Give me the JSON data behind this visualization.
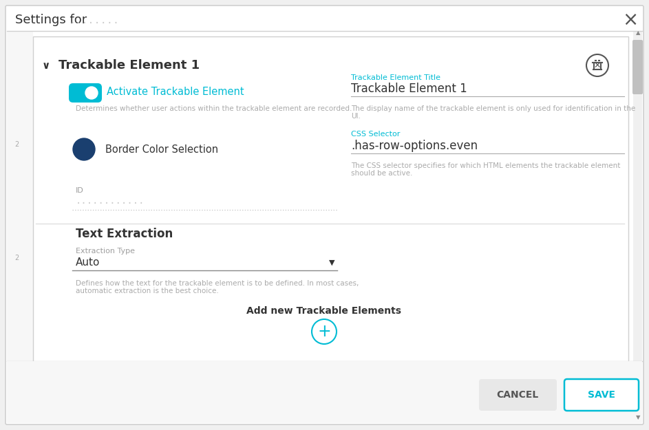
{
  "title": "Settings for",
  "title_blurred": "........",
  "bg_color": "#ffffff",
  "outer_bg": "#f0f0f0",
  "border_color": "#d0d0d0",
  "section_header": "Trackable Element 1",
  "activate_label": "Activate Trackable Element",
  "activate_sublabel": "Determines whether user actions within the trackable element are recorded.",
  "toggle_on_color": "#00bcd4",
  "border_color_label": "Border Color Selection",
  "border_circle_color": "#1a3f6f",
  "field_title_label": "Trackable Element Title",
  "field_title_color": "#00bcd4",
  "field_title_value": "Trackable Element 1",
  "field_title_sublabel1": "The display name of the trackable element is only used for identification in the",
  "field_title_sublabel2": "UI.",
  "field_css_label": "CSS Selector",
  "field_css_color": "#00bcd4",
  "field_css_value": ".has-row-options.even",
  "field_css_sublabel1": "The CSS selector specifies for which HTML elements the trackable element",
  "field_css_sublabel2": "should be active.",
  "id_label": "ID",
  "id_value_blurred": "............",
  "section2_header": "Text Extraction",
  "extraction_label": "Extraction Type",
  "extraction_value": "Auto",
  "extraction_sublabel1": "Defines how the text for the trackable element is to be defined. In most cases,",
  "extraction_sublabel2": "automatic extraction is the best choice.",
  "add_label": "Add new Trackable Elements",
  "plus_circle_color": "#00bcd4",
  "cancel_label": "CANCEL",
  "save_label": "SAVE",
  "save_border_color": "#00bcd4",
  "save_text_color": "#00bcd4",
  "line_color": "#e0e0e0",
  "scrollbar_color": "#c0c0c0",
  "label_small_color": "#9e9e9e",
  "text_color": "#333333",
  "subtext_color": "#aaaaaa",
  "cancel_bg": "#e8e8e8",
  "cancel_text_color": "#555555"
}
